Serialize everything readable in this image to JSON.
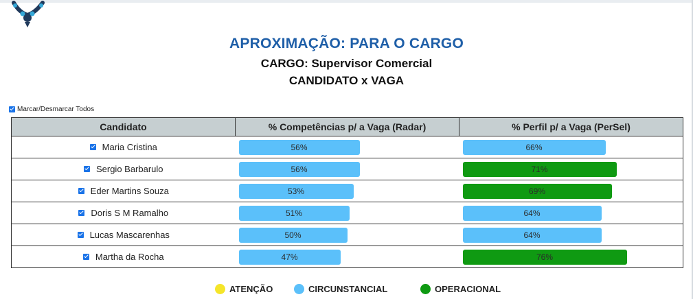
{
  "title": "APROXIMAÇÃO: PARA O CARGO",
  "cargo_line": "CARGO: Supervisor Comercial",
  "comparison_line": "CANDIDATO x VAGA",
  "toggle_all_label": "Marcar/Desmarcar Todos",
  "table": {
    "headers": [
      "Candidato",
      "% Competências p/ a Vaga (Radar)",
      "% Perfil p/ a Vaga (PerSel)"
    ],
    "rows": [
      {
        "name": "Maria Cristina",
        "checked": true,
        "radar": 56,
        "radar_label": "56%",
        "radar_color": "circunstancial",
        "persel": 66,
        "persel_label": "66%",
        "persel_color": "circunstancial"
      },
      {
        "name": "Sergio Barbarulo",
        "checked": true,
        "radar": 56,
        "radar_label": "56%",
        "radar_color": "circunstancial",
        "persel": 71,
        "persel_label": "71%",
        "persel_color": "operacional"
      },
      {
        "name": "Eder Martins Souza",
        "checked": true,
        "radar": 53,
        "radar_label": "53%",
        "radar_color": "circunstancial",
        "persel": 69,
        "persel_label": "69%",
        "persel_color": "operacional"
      },
      {
        "name": "Doris S M Ramalho",
        "checked": true,
        "radar": 51,
        "radar_label": "51%",
        "radar_color": "circunstancial",
        "persel": 64,
        "persel_label": "64%",
        "persel_color": "circunstancial"
      },
      {
        "name": "Lucas Mascarenhas",
        "checked": true,
        "radar": 50,
        "radar_label": "50%",
        "radar_color": "circunstancial",
        "persel": 64,
        "persel_label": "64%",
        "persel_color": "circunstancial"
      },
      {
        "name": "Martha da Rocha",
        "checked": true,
        "radar": 47,
        "radar_label": "47%",
        "radar_color": "circunstancial",
        "persel": 76,
        "persel_label": "76%",
        "persel_color": "operacional"
      }
    ]
  },
  "legend": [
    {
      "label": "ATENÇÃO",
      "color": "#f5e52a"
    },
    {
      "label": "CIRCUNSTANCIAL",
      "color": "#5bc0fa"
    },
    {
      "label": "OPERACIONAL",
      "color": "#0f9a12"
    }
  ],
  "colors": {
    "title": "#1f5fa8",
    "circunstancial": "#5bc0fa",
    "operacional": "#0f9a12",
    "header_bg": "#c6cfd1"
  }
}
